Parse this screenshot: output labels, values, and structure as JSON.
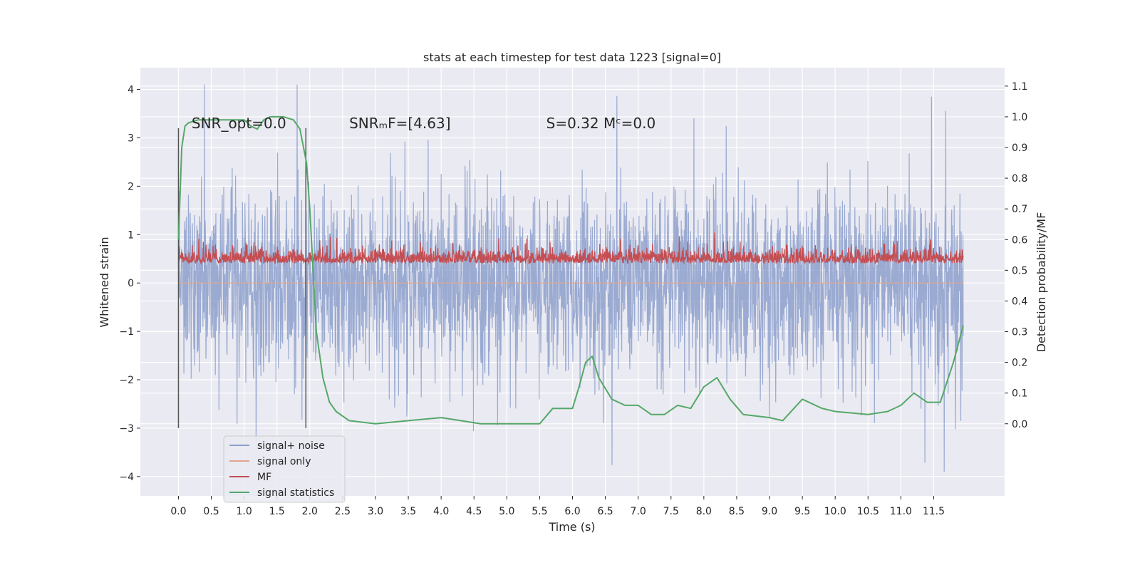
{
  "chart_data": {
    "type": "line",
    "title": "stats at each timestep for test data 1223 [signal=0]",
    "xlabel": "Time (s)",
    "ylabel": "Whitened strain",
    "y2label": "Detection probability/MF",
    "xlim": [
      -0.58,
      12.58
    ],
    "ylim": [
      -4.4,
      4.45
    ],
    "y2lim": [
      -0.235,
      1.16
    ],
    "x_ticks": [
      "0.0",
      "0.5",
      "1.0",
      "1.5",
      "2.0",
      "2.5",
      "3.0",
      "3.5",
      "4.0",
      "4.5",
      "5.0",
      "5.5",
      "6.0",
      "6.5",
      "7.0",
      "7.5",
      "8.0",
      "8.5",
      "9.0",
      "9.5",
      "10.0",
      "10.5",
      "11.0",
      "11.5"
    ],
    "y_ticks": [
      "4",
      "3",
      "2",
      "1",
      "0",
      "−1",
      "−2",
      "−3",
      "−4"
    ],
    "y2_ticks": [
      "1.1",
      "1.0",
      "0.9",
      "0.8",
      "0.7",
      "0.6",
      "0.5",
      "0.4",
      "0.3",
      "0.2",
      "0.1",
      "0.0"
    ],
    "grid": true,
    "legend_position": "lower-left",
    "annotations": [
      {
        "id": "snr_opt",
        "text": "SNR_opt=0.0",
        "x": 0.2,
        "y": 3.2
      },
      {
        "id": "snr_mf",
        "text": "SNRₘF=[4.63]",
        "x": 2.6,
        "y": 3.2
      },
      {
        "id": "s_mc",
        "text": "S=0.32   Mᶜ=0.0",
        "x": 5.6,
        "y": 3.2
      }
    ],
    "vertical_lines": [
      0.0,
      1.94
    ],
    "series": [
      {
        "name": "signal+ noise",
        "axis": "left",
        "color": "#8c9fcb",
        "kind": "noise",
        "x_range": [
          0.0,
          11.95
        ],
        "typical_range": [
          -1.5,
          1.6
        ],
        "extremes": [
          -3.9,
          4.1
        ]
      },
      {
        "name": "signal only",
        "axis": "left",
        "color": "#e3a58a",
        "values_flat": 0.0
      },
      {
        "name": "MF",
        "axis": "right",
        "color": "#c44e52",
        "kind": "noise",
        "x_range": [
          0.0,
          11.95
        ],
        "typical_range": [
          0.5,
          0.58
        ],
        "extremes": [
          0.49,
          0.64
        ]
      },
      {
        "name": "signal statistics",
        "axis": "right",
        "color": "#55a868",
        "x": [
          0.0,
          0.05,
          0.1,
          0.15,
          0.3,
          0.5,
          0.8,
          0.9,
          1.0,
          1.1,
          1.2,
          1.3,
          1.4,
          1.6,
          1.75,
          1.85,
          1.95,
          2.0,
          2.05,
          2.1,
          2.2,
          2.3,
          2.4,
          2.6,
          3.0,
          3.5,
          4.0,
          4.3,
          4.6,
          5.0,
          5.5,
          5.7,
          5.9,
          6.0,
          6.1,
          6.2,
          6.3,
          6.4,
          6.6,
          6.8,
          7.0,
          7.2,
          7.4,
          7.6,
          7.8,
          8.0,
          8.2,
          8.4,
          8.6,
          9.0,
          9.2,
          9.5,
          9.8,
          10.0,
          10.5,
          10.8,
          11.0,
          11.2,
          11.4,
          11.6,
          11.8,
          11.95
        ],
        "y": [
          0.6,
          0.9,
          0.97,
          0.98,
          0.99,
          0.99,
          0.99,
          0.99,
          0.99,
          0.97,
          0.96,
          0.99,
          1.0,
          1.0,
          0.99,
          0.96,
          0.85,
          0.7,
          0.5,
          0.3,
          0.15,
          0.07,
          0.04,
          0.01,
          0.0,
          0.01,
          0.02,
          0.01,
          0.0,
          0.0,
          0.0,
          0.05,
          0.05,
          0.05,
          0.12,
          0.2,
          0.22,
          0.15,
          0.08,
          0.06,
          0.06,
          0.03,
          0.03,
          0.06,
          0.05,
          0.12,
          0.15,
          0.08,
          0.03,
          0.02,
          0.01,
          0.08,
          0.05,
          0.04,
          0.03,
          0.04,
          0.06,
          0.1,
          0.07,
          0.07,
          0.2,
          0.32
        ]
      }
    ]
  }
}
